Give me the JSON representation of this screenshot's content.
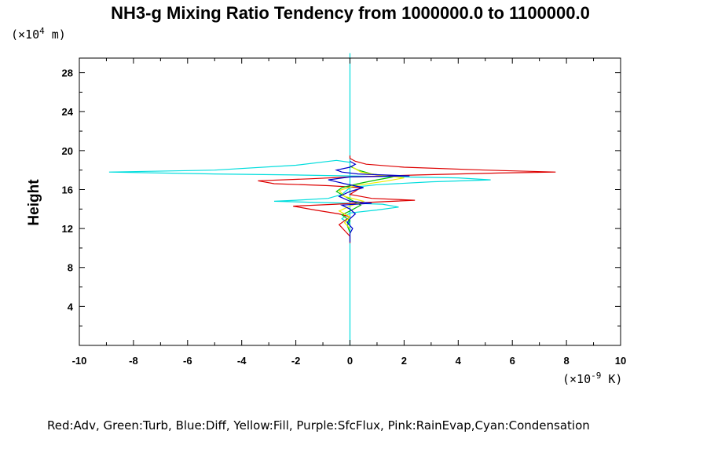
{
  "chart_data": {
    "type": "line",
    "title": "NH3-g Mixing Ratio Tendency from 1000000.0 to 1100000.0",
    "ylabel": "Height",
    "y_unit_prefix": "(×10",
    "y_unit_exp": "4",
    "y_unit_suffix": " m)",
    "x_unit_prefix": "(×10",
    "x_unit_exp": "-9",
    "x_unit_suffix": " K)",
    "xlim": [
      -10,
      10
    ],
    "ylim": [
      0,
      29.5
    ],
    "xticks": [
      -10,
      -8,
      -6,
      -4,
      -2,
      0,
      2,
      4,
      6,
      8,
      10
    ],
    "xtick_labels": [
      "-10",
      "-8",
      "-6",
      "-4",
      "-2",
      "0",
      "2",
      "4",
      "6",
      "8",
      "10"
    ],
    "yticks": [
      4,
      8,
      12,
      16,
      20,
      24,
      28
    ],
    "ytick_labels": [
      "4",
      "8",
      "12",
      "16",
      "20",
      "24",
      "28"
    ],
    "grid": false,
    "legend_text": "Red:Adv, Green:Turb, Blue:Diff, Yellow:Fill, Purple:SfcFlux, Pink:RainEvap,Cyan:Condensation",
    "series": [
      {
        "color": "#00dddd",
        "points": [
          [
            0,
            0
          ],
          [
            0,
            18.8
          ],
          [
            -0.5,
            19.0
          ],
          [
            -2,
            18.5
          ],
          [
            -5,
            18.0
          ],
          [
            -8.9,
            17.8
          ],
          [
            -5,
            17.6
          ],
          [
            -2,
            17.5
          ],
          [
            0,
            17.4
          ],
          [
            2,
            17.3
          ],
          [
            4,
            17.2
          ],
          [
            5.2,
            17.0
          ],
          [
            3,
            16.8
          ],
          [
            1,
            16.5
          ],
          [
            0,
            16.2
          ],
          [
            -0.3,
            15.5
          ],
          [
            -0.8,
            15.1
          ],
          [
            -2,
            14.9
          ],
          [
            -2.8,
            14.8
          ],
          [
            -1.5,
            14.7
          ],
          [
            0,
            14.6
          ],
          [
            1.2,
            14.5
          ],
          [
            1.8,
            14.2
          ],
          [
            1,
            13.9
          ],
          [
            0,
            13.6
          ],
          [
            -0.3,
            13.0
          ],
          [
            0,
            12.5
          ],
          [
            0,
            30
          ]
        ]
      },
      {
        "color": "#dd0000",
        "points": [
          [
            0,
            10.5
          ],
          [
            0,
            11.2
          ],
          [
            -0.2,
            11.8
          ],
          [
            -0.4,
            12.4
          ],
          [
            -0.2,
            12.8
          ],
          [
            0,
            13.2
          ],
          [
            -0.4,
            13.5
          ],
          [
            -1.3,
            13.9
          ],
          [
            -2.1,
            14.3
          ],
          [
            -0.5,
            14.5
          ],
          [
            0.8,
            14.7
          ],
          [
            2.4,
            14.9
          ],
          [
            0.8,
            15.1
          ],
          [
            0,
            15.5
          ],
          [
            0.4,
            16.2
          ],
          [
            -0.8,
            16.4
          ],
          [
            -2.8,
            16.6
          ],
          [
            -3.4,
            16.9
          ],
          [
            -1.5,
            17.1
          ],
          [
            0,
            17.3
          ],
          [
            2.5,
            17.5
          ],
          [
            5.5,
            17.7
          ],
          [
            7.6,
            17.8
          ],
          [
            5,
            18.0
          ],
          [
            2,
            18.3
          ],
          [
            0.6,
            18.6
          ],
          [
            0.2,
            18.9
          ],
          [
            0,
            19.2
          ],
          [
            0,
            19.5
          ]
        ]
      },
      {
        "color": "#00bb00",
        "points": [
          [
            0,
            11.6
          ],
          [
            -0.1,
            12.3
          ],
          [
            0,
            12.8
          ],
          [
            -0.3,
            13.4
          ],
          [
            0,
            13.8
          ],
          [
            0.4,
            14.4
          ],
          [
            0,
            15.0
          ],
          [
            -0.5,
            15.8
          ],
          [
            -0.3,
            16.2
          ],
          [
            0.3,
            16.6
          ],
          [
            1.0,
            17.0
          ],
          [
            1.6,
            17.3
          ],
          [
            0.8,
            17.6
          ],
          [
            0.3,
            18.0
          ],
          [
            0,
            18.4
          ]
        ]
      },
      {
        "color": "#eeee00",
        "points": [
          [
            0,
            12.0
          ],
          [
            -0.2,
            12.6
          ],
          [
            0,
            13.2
          ],
          [
            -0.4,
            13.8
          ],
          [
            0,
            14.3
          ],
          [
            0.5,
            14.8
          ],
          [
            -0.2,
            15.3
          ],
          [
            -0.4,
            15.9
          ],
          [
            0.2,
            16.4
          ],
          [
            1.4,
            16.9
          ],
          [
            2.0,
            17.2
          ],
          [
            1.0,
            17.5
          ],
          [
            0.4,
            17.8
          ],
          [
            0.1,
            18.3
          ]
        ]
      },
      {
        "color": "#0000cc",
        "points": [
          [
            0,
            10.6
          ],
          [
            0,
            11.5
          ],
          [
            0.1,
            12.0
          ],
          [
            -0.1,
            12.6
          ],
          [
            0,
            13.0
          ],
          [
            0.2,
            13.5
          ],
          [
            0,
            14.0
          ],
          [
            -0.3,
            14.4
          ],
          [
            0.8,
            14.6
          ],
          [
            0,
            14.8
          ],
          [
            -0.4,
            15.3
          ],
          [
            0,
            15.8
          ],
          [
            0.5,
            16.2
          ],
          [
            -0.2,
            16.6
          ],
          [
            -0.8,
            17.0
          ],
          [
            0,
            17.3
          ],
          [
            2.2,
            17.4
          ],
          [
            0.3,
            17.6
          ],
          [
            -0.3,
            17.8
          ],
          [
            -0.5,
            18.0
          ],
          [
            0,
            18.3
          ],
          [
            0.2,
            18.6
          ],
          [
            0,
            18.9
          ]
        ]
      }
    ]
  }
}
